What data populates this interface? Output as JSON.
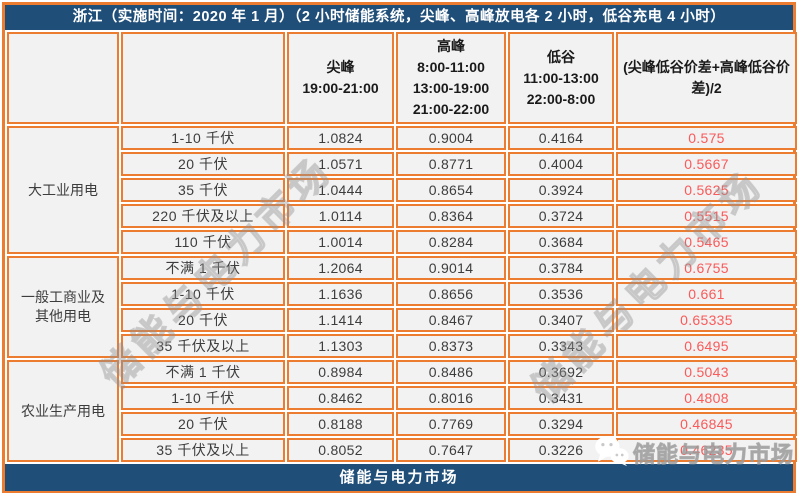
{
  "title": "浙江（实施时间：2020 年 1 月）（2 小时储能系统，尖峰、高峰放电各 2 小时，低谷充电 4 小时）",
  "header": {
    "peak": {
      "name": "尖峰",
      "times": [
        "19:00-21:00"
      ]
    },
    "high": {
      "name": "高峰",
      "times": [
        "8:00-11:00",
        "13:00-19:00",
        "21:00-22:00"
      ]
    },
    "valley": {
      "name": "低谷",
      "times": [
        "11:00-13:00",
        "22:00-8:00"
      ]
    },
    "spread_formula": "(尖峰低谷价差+高峰低谷价差)/2"
  },
  "groups": [
    {
      "category": "大工业用电",
      "rows": [
        {
          "label": "1-10 千伏",
          "values": [
            "1.0824",
            "0.9004",
            "0.4164"
          ],
          "avg": "0.575"
        },
        {
          "label": "20 千伏",
          "values": [
            "1.0571",
            "0.8771",
            "0.4004"
          ],
          "avg": "0.5667"
        },
        {
          "label": "35 千伏",
          "values": [
            "1.0444",
            "0.8654",
            "0.3924"
          ],
          "avg": "0.5625"
        },
        {
          "label": "220 千伏及以上",
          "values": [
            "1.0114",
            "0.8364",
            "0.3724"
          ],
          "avg": "0.5515"
        },
        {
          "label": "110 千伏",
          "values": [
            "1.0014",
            "0.8284",
            "0.3684"
          ],
          "avg": "0.5465"
        }
      ]
    },
    {
      "category": "一般工商业及\n其他用电",
      "rows": [
        {
          "label": "不满 1 千伏",
          "values": [
            "1.2064",
            "0.9014",
            "0.3784"
          ],
          "avg": "0.6755"
        },
        {
          "label": "1-10 千伏",
          "values": [
            "1.1636",
            "0.8656",
            "0.3536"
          ],
          "avg": "0.661"
        },
        {
          "label": "20 千伏",
          "values": [
            "1.1414",
            "0.8467",
            "0.3407"
          ],
          "avg": "0.65335"
        },
        {
          "label": "35 千伏及以上",
          "values": [
            "1.1303",
            "0.8373",
            "0.3343"
          ],
          "avg": "0.6495"
        }
      ]
    },
    {
      "category": "农业生产用电",
      "rows": [
        {
          "label": "不满 1 千伏",
          "values": [
            "0.8984",
            "0.8486",
            "0.3692"
          ],
          "avg": "0.5043"
        },
        {
          "label": "1-10 千伏",
          "values": [
            "0.8462",
            "0.8016",
            "0.3431"
          ],
          "avg": "0.4808"
        },
        {
          "label": "20 千伏",
          "values": [
            "0.8188",
            "0.7769",
            "0.3294"
          ],
          "avg": "0.46845"
        },
        {
          "label": "35 千伏及以上",
          "values": [
            "0.8052",
            "0.7647",
            "0.3226"
          ],
          "avg": "0.46235"
        }
      ]
    }
  ],
  "footer": {
    "label": "储能与电力市场"
  },
  "watermark": {
    "diagonal_text": "储能与电力市场",
    "wechat_text": "储能与电力市场"
  },
  "colors": {
    "border_orange": "#EC7C30",
    "bar_navy": "#1F4E79",
    "cell_gray": "#F2F2F2",
    "value_red": "#FA5A5A",
    "text_dark": "#3d3d3d"
  }
}
